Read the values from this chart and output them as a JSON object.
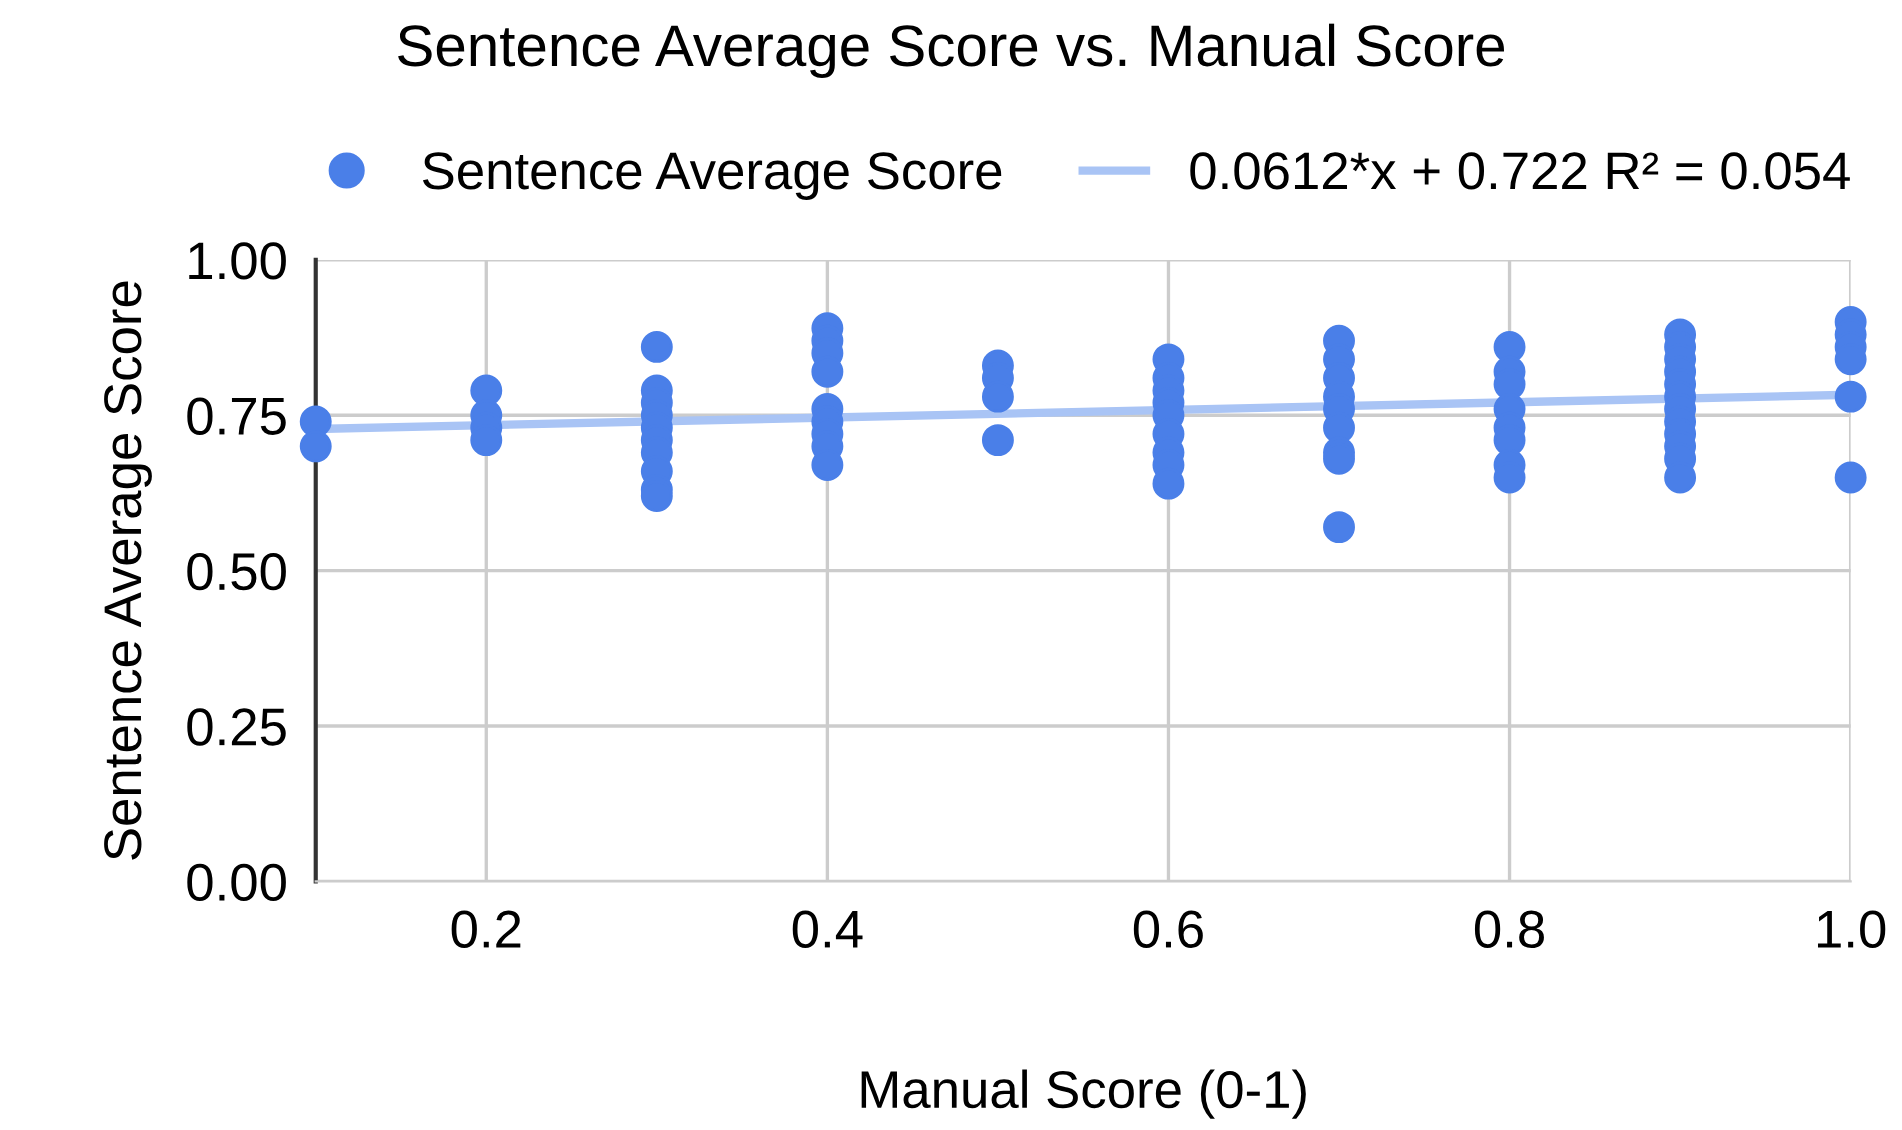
{
  "chart_data": {
    "type": "scatter",
    "title": "Sentence Average Score vs. Manual Score",
    "xlabel": "Manual Score (0-1)",
    "ylabel": "Sentence Average Score",
    "xlim": [
      0.1,
      1.0
    ],
    "xticks": [
      0.2,
      0.4,
      0.6,
      0.8,
      {
        "value": 1.0,
        "label": "1.0"
      }
    ],
    "ylim": [
      0,
      1
    ],
    "yticks": [
      {
        "value": 0,
        "label": "0.00"
      },
      {
        "value": 0.25,
        "label": "0.25"
      },
      {
        "value": 0.5,
        "label": "0.50"
      },
      {
        "value": 0.75,
        "label": "0.75"
      },
      {
        "value": 1,
        "label": "1.00"
      }
    ],
    "grid": true,
    "legend": "top",
    "series": [
      {
        "name": "Sentence Average Score",
        "color": "#4a7fe8",
        "marker": "circle",
        "x": [
          0.1,
          0.1,
          0.2,
          0.2,
          0.2,
          0.2,
          0.3,
          0.3,
          0.3,
          0.3,
          0.3,
          0.3,
          0.3,
          0.3,
          0.3,
          0.3,
          0.4,
          0.4,
          0.4,
          0.4,
          0.4,
          0.4,
          0.4,
          0.4,
          0.4,
          0.5,
          0.5,
          0.5,
          0.5,
          0.6,
          0.6,
          0.6,
          0.6,
          0.6,
          0.6,
          0.6,
          0.6,
          0.6,
          0.7,
          0.7,
          0.7,
          0.7,
          0.7,
          0.7,
          0.7,
          0.7,
          0.7,
          0.8,
          0.8,
          0.8,
          0.8,
          0.8,
          0.8,
          0.8,
          0.8,
          0.9,
          0.9,
          0.9,
          0.9,
          0.9,
          0.9,
          0.9,
          0.9,
          0.9,
          0.9,
          0.9,
          0.9,
          1.0,
          1.0,
          1.0,
          1.0,
          1.0,
          1.0
        ],
        "values": [
          0.74,
          0.7,
          0.79,
          0.75,
          0.73,
          0.71,
          0.86,
          0.79,
          0.77,
          0.75,
          0.73,
          0.71,
          0.69,
          0.66,
          0.63,
          0.62,
          0.89,
          0.87,
          0.85,
          0.82,
          0.76,
          0.74,
          0.72,
          0.7,
          0.67,
          0.83,
          0.81,
          0.78,
          0.71,
          0.84,
          0.81,
          0.79,
          0.77,
          0.75,
          0.72,
          0.69,
          0.67,
          0.64,
          0.87,
          0.84,
          0.81,
          0.78,
          0.76,
          0.73,
          0.69,
          0.68,
          0.57,
          0.86,
          0.82,
          0.8,
          0.76,
          0.73,
          0.71,
          0.67,
          0.65,
          0.88,
          0.86,
          0.84,
          0.82,
          0.8,
          0.78,
          0.76,
          0.74,
          0.72,
          0.7,
          0.68,
          0.65,
          0.9,
          0.88,
          0.86,
          0.84,
          0.78,
          0.65
        ]
      },
      {
        "name": "0.0612*x + 0.722 R² = 0.054",
        "color": "#a9c4f5",
        "type": "line",
        "marker": "none",
        "x": [
          0.1,
          1.0
        ],
        "values": [
          0.728,
          0.783
        ]
      }
    ]
  }
}
